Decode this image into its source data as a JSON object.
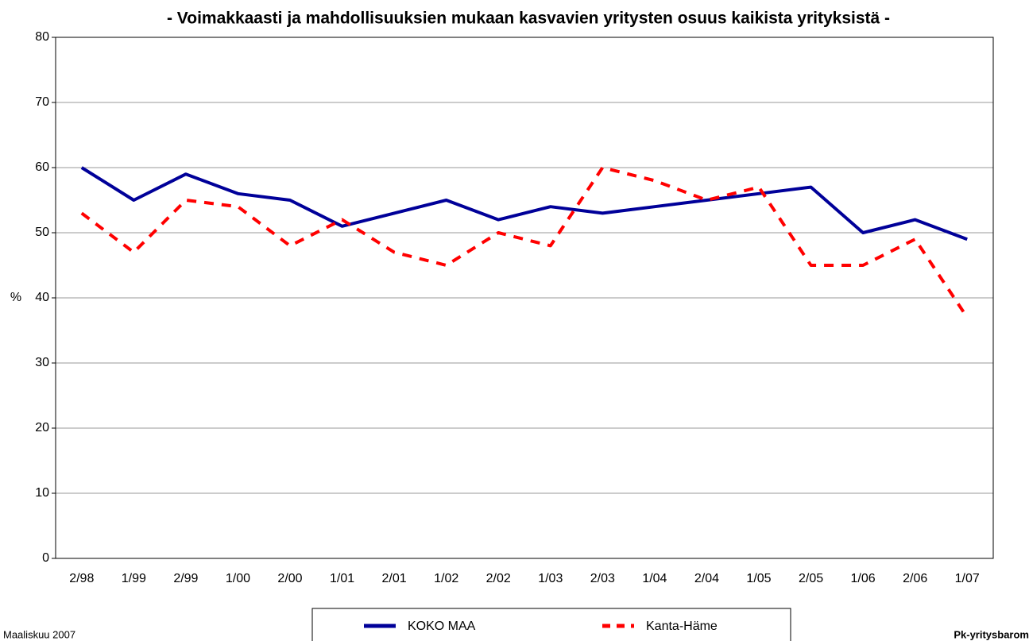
{
  "chart_data": {
    "type": "line",
    "title": "- Voimakkaasti ja mahdollisuuksien mukaan kasvavien yritysten osuus kaikista yrityksistä -",
    "y_label": "%",
    "categories": [
      "2/98",
      "1/99",
      "2/99",
      "1/00",
      "2/00",
      "1/01",
      "2/01",
      "1/02",
      "2/02",
      "1/03",
      "2/03",
      "1/04",
      "2/04",
      "1/05",
      "2/05",
      "1/06",
      "2/06",
      "1/07"
    ],
    "series": [
      {
        "name": "KOKO MAA",
        "color": "#000099",
        "dashed": false,
        "values": [
          60,
          55,
          59,
          56,
          55,
          51,
          53,
          55,
          52,
          54,
          53,
          54,
          55,
          56,
          57,
          50,
          52,
          49
        ]
      },
      {
        "name": "Kanta-Häme",
        "color": "#ff0000",
        "dashed": true,
        "values": [
          53,
          47,
          55,
          54,
          48,
          52,
          47,
          45,
          50,
          48,
          60,
          58,
          55,
          57,
          45,
          45,
          49,
          37
        ]
      }
    ],
    "ylim": [
      0,
      80
    ],
    "yticks": [
      0,
      10,
      20,
      30,
      40,
      50,
      60,
      70,
      80
    ],
    "grid": true,
    "footer_left": "Maaliskuu 2007",
    "footer_right": "Pk-yritysbarom"
  }
}
